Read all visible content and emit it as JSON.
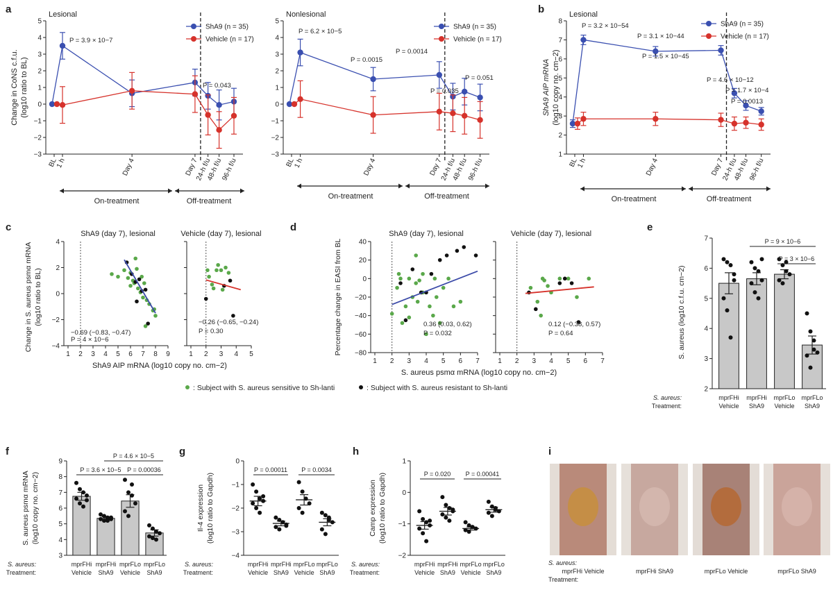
{
  "colors": {
    "sha9": "#3a4fb0",
    "vehicle": "#d6322b",
    "green": "#5aa84a",
    "black": "#111111",
    "bar": "#c8c8c8",
    "line_c": "#3b4aa8"
  },
  "figure": {
    "legend_sensitive": ": Subject with S. aureus sensitive to Sh-lanti",
    "legend_resistant": ": Subject with S. aureus resistant to Sh-lanti",
    "legend_c_sha9": "ShA9 (n = 35)",
    "legend_c_vehicle": "Vehicle (n = 17)",
    "on_treatment": "On-treatment",
    "off_treatment": "Off-treatment",
    "photo_labels": [
      "mprFHi Vehicle",
      "mprFHi ShA9",
      "mprFLo Vehicle",
      "mprFLo ShA9"
    ],
    "panel_i_row1": "S. aureus:",
    "panel_i_row2": "Treatment:"
  },
  "chart_data": [
    {
      "panel": "a-left",
      "type": "line",
      "title": "Lesional",
      "ylabel": "Change in CoNS c.f.u. (log10 ratio to BL)",
      "ylim": [
        -3,
        5
      ],
      "categories": [
        "BL",
        "1 h",
        "Day 4",
        "Day 7",
        "24-h f/u",
        "48-h f/u",
        "96-h f/u"
      ],
      "series": [
        {
          "name": "ShA9 (n = 35)",
          "values": [
            0,
            3.5,
            0.65,
            1.3,
            0.5,
            -0.05,
            0.15
          ],
          "err": [
            0,
            0.8,
            0.8,
            0.8,
            0.8,
            0.9,
            0.8
          ]
        },
        {
          "name": "Vehicle (n = 17)",
          "values": [
            0,
            -0.05,
            0.8,
            0.6,
            -0.65,
            -1.55,
            -0.7
          ],
          "err": [
            0,
            1.1,
            1.1,
            1.1,
            1.2,
            1.1,
            1.1
          ]
        }
      ],
      "annotations": [
        "P = 3.9 × 10−7",
        "P = 0.043"
      ]
    },
    {
      "panel": "a-right",
      "type": "line",
      "title": "Nonlesional",
      "ylim": [
        -3,
        5
      ],
      "categories": [
        "BL",
        "1 h",
        "Day 4",
        "Day 7",
        "24-h f/u",
        "48-h f/u",
        "96-h f/u"
      ],
      "series": [
        {
          "name": "ShA9 (n = 35)",
          "values": [
            0,
            3.1,
            1.5,
            1.75,
            0.45,
            0.75,
            0.4
          ],
          "err": [
            0,
            0.8,
            0.7,
            0.8,
            0.8,
            0.8,
            0.8
          ]
        },
        {
          "name": "Vehicle (n = 17)",
          "values": [
            0,
            0.3,
            -0.65,
            -0.45,
            -0.55,
            -0.7,
            -0.95
          ],
          "err": [
            0,
            1.1,
            1.1,
            1.1,
            1.1,
            1.1,
            1.1
          ]
        }
      ],
      "annotations": [
        "P = 6.2 × 10−5",
        "P = 0.0015",
        "P = 0.0014",
        "P = 0.035",
        "P = 0.051"
      ]
    },
    {
      "panel": "b",
      "type": "line",
      "title": "Lesional",
      "ylabel": "ShA9 AIP mRNA (log10 copy no. cm−2)",
      "ylim": [
        1,
        8
      ],
      "categories": [
        "BL",
        "1 h",
        "Day 4",
        "Day 7",
        "24-h f/u",
        "48-h f/u",
        "96-h f/u"
      ],
      "series": [
        {
          "name": "ShA9 (n = 35)",
          "values": [
            2.6,
            7.0,
            6.4,
            6.45,
            4.2,
            3.55,
            3.25
          ],
          "err": [
            0.2,
            0.25,
            0.25,
            0.25,
            0.25,
            0.25,
            0.2
          ]
        },
        {
          "name": "Vehicle (n = 17)",
          "values": [
            2.6,
            2.85,
            2.85,
            2.8,
            2.6,
            2.65,
            2.55
          ],
          "err": [
            0.3,
            0.35,
            0.35,
            0.35,
            0.35,
            0.3,
            0.3
          ]
        }
      ],
      "annotations": [
        "P = 3.2 × 10−54",
        "P = 3.1 × 10−44",
        "P = 1.5 × 10−45",
        "P = 4.6 × 10−12",
        "P = 1.7 × 10−4",
        "P = 0.0013"
      ]
    },
    {
      "panel": "c-left",
      "type": "scatter",
      "title": "ShA9 (day 7), lesional",
      "xlabel": "ShA9 AIP mRNA (log10 copy no. cm−2)",
      "ylabel": "Change in S. aureus psmα mRNA (log10 ratio to BL)",
      "xlim": [
        1,
        9
      ],
      "ylim": [
        -4,
        4
      ],
      "green": [
        [
          4.5,
          1.5
        ],
        [
          5.0,
          1.3
        ],
        [
          5.5,
          1.8
        ],
        [
          5.8,
          1.2
        ],
        [
          6.0,
          1.6
        ],
        [
          6.2,
          1.0
        ],
        [
          6.3,
          0.8
        ],
        [
          6.4,
          2.7
        ],
        [
          6.5,
          1.9
        ],
        [
          6.6,
          0.4
        ],
        [
          6.8,
          0.1
        ],
        [
          7.0,
          -0.3
        ],
        [
          7.1,
          0.8
        ],
        [
          7.3,
          -0.5
        ],
        [
          7.5,
          -0.8
        ],
        [
          7.8,
          -1.3
        ],
        [
          8.0,
          -1.7
        ],
        [
          7.9,
          -1.2
        ],
        [
          6.9,
          1.3
        ],
        [
          6.0,
          0.6
        ],
        [
          7.2,
          -2.5
        ]
      ],
      "black": [
        [
          5.7,
          2.4
        ],
        [
          6.1,
          1.5
        ],
        [
          6.4,
          0.9
        ],
        [
          6.7,
          1.1
        ],
        [
          6.9,
          0.2
        ],
        [
          7.2,
          0.3
        ],
        [
          7.4,
          -2.3
        ],
        [
          6.5,
          -0.6
        ]
      ],
      "fit": [
        [
          5.5,
          2.6
        ],
        [
          8.0,
          -1.5
        ]
      ],
      "stat_r": "−0.69 (−0.83, −0.47)",
      "stat_p": "P = 4 × 10−6"
    },
    {
      "panel": "c-right",
      "type": "scatter",
      "title": "Vehicle (day 7), lesional",
      "xlim": [
        1,
        5
      ],
      "ylim": [
        -4,
        4
      ],
      "green": [
        [
          2.2,
          1.3
        ],
        [
          2.4,
          0.7
        ],
        [
          2.5,
          0.4
        ],
        [
          2.7,
          1.8
        ],
        [
          2.8,
          2.2
        ],
        [
          3.0,
          1.8
        ],
        [
          3.1,
          0.3
        ],
        [
          3.3,
          2.0
        ],
        [
          3.5,
          1.6
        ],
        [
          2.1,
          1.8
        ]
      ],
      "black": [
        [
          2.0,
          -0.4
        ],
        [
          3.2,
          0.6
        ],
        [
          3.6,
          1.0
        ],
        [
          3.8,
          -1.7
        ]
      ],
      "fit": [
        [
          2.0,
          1.05
        ],
        [
          4.3,
          0.3
        ]
      ],
      "stat_r": "−0.26 (−0.65, −0.24)",
      "stat_p": "P = 0.30"
    },
    {
      "panel": "d-left",
      "type": "scatter",
      "title": "ShA9 (day 7), lesional",
      "xlabel": "S. aureus psmα mRNA (log10 copy no. cm−2)",
      "ylabel": "Percentage change in EASI from BL",
      "xlim": [
        1,
        7
      ],
      "ylim": [
        -80,
        40
      ],
      "green": [
        [
          2.0,
          -38
        ],
        [
          2.3,
          -10
        ],
        [
          2.5,
          0
        ],
        [
          2.6,
          -48
        ],
        [
          2.8,
          -30
        ],
        [
          3.0,
          -42
        ],
        [
          3.2,
          -20
        ],
        [
          3.4,
          -5
        ],
        [
          3.5,
          -25
        ],
        [
          3.6,
          -2
        ],
        [
          3.8,
          -15
        ],
        [
          4.0,
          -60
        ],
        [
          4.2,
          -30
        ],
        [
          4.4,
          -40
        ],
        [
          4.6,
          -20
        ],
        [
          4.8,
          -48
        ],
        [
          5.0,
          -10
        ],
        [
          5.3,
          0
        ],
        [
          5.6,
          -30
        ],
        [
          6.0,
          -25
        ],
        [
          3.0,
          0
        ],
        [
          4.5,
          0
        ],
        [
          3.8,
          5
        ],
        [
          3.4,
          25
        ],
        [
          2.4,
          5
        ]
      ],
      "black": [
        [
          2.5,
          -5
        ],
        [
          3.2,
          10
        ],
        [
          3.7,
          -15
        ],
        [
          4.3,
          5
        ],
        [
          4.8,
          20
        ],
        [
          5.2,
          25
        ],
        [
          5.8,
          30
        ],
        [
          6.2,
          34
        ],
        [
          6.9,
          25
        ],
        [
          4.0,
          -15
        ],
        [
          2.8,
          -45
        ]
      ],
      "fit": [
        [
          2.0,
          -28
        ],
        [
          7.0,
          8
        ]
      ],
      "stat_r": "0.36 (0.03, 0.62)",
      "stat_p": "P = 0.032"
    },
    {
      "panel": "d-right",
      "type": "scatter",
      "title": "Vehicle (day 7), lesional",
      "xlim": [
        1,
        7
      ],
      "ylim": [
        -80,
        40
      ],
      "green": [
        [
          2.8,
          -10
        ],
        [
          3.2,
          -25
        ],
        [
          3.4,
          -40
        ],
        [
          3.6,
          -2
        ],
        [
          3.8,
          -8
        ],
        [
          4.0,
          -15
        ],
        [
          4.5,
          0
        ],
        [
          5.0,
          0
        ],
        [
          5.5,
          -20
        ],
        [
          3.5,
          0
        ],
        [
          6.2,
          0
        ]
      ],
      "black": [
        [
          2.7,
          -15
        ],
        [
          3.1,
          -33
        ],
        [
          4.5,
          -5
        ],
        [
          5.2,
          -5
        ],
        [
          5.6,
          -47
        ],
        [
          4.8,
          0
        ]
      ],
      "fit": [
        [
          2.5,
          -16
        ],
        [
          6.5,
          -9
        ]
      ],
      "stat_r": "0.12 (−0.38, 0.57)",
      "stat_p": "P = 0.64"
    },
    {
      "panel": "e",
      "type": "bar",
      "ylabel": "S. aureus (log10 c.f.u. cm−2)",
      "ylim": [
        2,
        7
      ],
      "categories": [
        "mprFHi Vehicle",
        "mprFHi ShA9",
        "mprFLo Vehicle",
        "mprFLo ShA9"
      ],
      "values": [
        5.5,
        5.65,
        5.8,
        3.45
      ],
      "err": [
        0.35,
        0.2,
        0.15,
        0.3
      ],
      "points": [
        [
          6.3,
          6.2,
          6.1,
          5.8,
          5.0,
          4.6,
          3.7,
          5.6
        ],
        [
          6.2,
          6.0,
          5.9,
          5.6,
          5.5,
          5.2,
          5.0,
          6.3
        ],
        [
          6.3,
          6.1,
          5.9,
          5.8,
          5.6,
          5.5,
          6.2
        ],
        [
          4.5,
          3.9,
          3.6,
          3.2,
          3.1,
          2.7,
          3.3
        ]
      ],
      "annotations": [
        "P = 9 × 10−6",
        "P = 3 × 10−6"
      ],
      "row_strain": [
        "mprFHi",
        "mprFHi",
        "mprFLo",
        "mprFLo"
      ],
      "row_treat": [
        "Vehicle",
        "ShA9",
        "Vehicle",
        "ShA9"
      ]
    },
    {
      "panel": "f",
      "type": "bar",
      "ylabel": "S. aureus psmα mRNA (log10 copy no. cm−2)",
      "ylim": [
        3,
        9
      ],
      "categories": [
        "mprFHi Vehicle",
        "mprFHi ShA9",
        "mprFLo Vehicle",
        "mprFLo ShA9"
      ],
      "values": [
        6.75,
        5.35,
        6.45,
        4.42
      ],
      "err": [
        0.25,
        0.1,
        0.4,
        0.2
      ],
      "points": [
        [
          7.6,
          7.2,
          7.0,
          6.8,
          6.6,
          6.3,
          6.1,
          6.5
        ],
        [
          5.6,
          5.5,
          5.4,
          5.3,
          5.3,
          5.2,
          5.2,
          5.4
        ],
        [
          7.8,
          7.0,
          6.8,
          6.3,
          5.8,
          5.5,
          7.5
        ],
        [
          4.9,
          4.7,
          4.5,
          4.4,
          4.2,
          4.1,
          4.0
        ]
      ],
      "annotations": [
        "P = 3.6 × 10−5",
        "P = 4.6 × 10−5",
        "P = 0.00036"
      ],
      "row_strain": [
        "mprFHi",
        "mprFHi",
        "mprFLo",
        "mprFLo"
      ],
      "row_treat": [
        "Vehicle",
        "ShA9",
        "Vehicle",
        "ShA9"
      ]
    },
    {
      "panel": "g",
      "type": "scatter",
      "ylabel": "Il-4 expression (log10 ratio to Gapdh)",
      "ylim": [
        -4,
        0
      ],
      "categories": [
        "mprFHi Vehicle",
        "mprFHi ShA9",
        "mprFLo Vehicle",
        "mprFLo ShA9"
      ],
      "means": [
        -1.7,
        -2.65,
        -1.65,
        -2.6
      ],
      "err": [
        0.2,
        0.1,
        0.22,
        0.15
      ],
      "points": [
        [
          -1.0,
          -1.3,
          -1.6,
          -1.7,
          -1.8,
          -2.0,
          -2.2,
          -1.5
        ],
        [
          -2.4,
          -2.5,
          -2.6,
          -2.7,
          -2.8,
          -2.9,
          -2.6,
          -2.75
        ],
        [
          -0.9,
          -1.3,
          -1.6,
          -1.8,
          -2.0,
          -2.2
        ],
        [
          -2.2,
          -2.3,
          -2.5,
          -2.6,
          -2.9,
          -3.1,
          -2.4
        ]
      ],
      "annotations": [
        "P = 0.00011",
        "P = 0.0034"
      ],
      "row_strain": [
        "mprFHi",
        "mprFHi",
        "mprFLo",
        "mprFLo"
      ],
      "row_treat": [
        "Vehicle",
        "ShA9",
        "Vehicle",
        "ShA9"
      ]
    },
    {
      "panel": "h",
      "type": "scatter",
      "ylabel": "Camp expression (log10 ratio to Gapdh)",
      "ylim": [
        -2,
        1
      ],
      "categories": [
        "mprFHi Vehicle",
        "mprFHi ShA9",
        "mprFLo Vehicle",
        "mprFLo ShA9"
      ],
      "means": [
        -1.05,
        -0.6,
        -1.15,
        -0.55
      ],
      "err": [
        0.12,
        0.12,
        0.05,
        0.08
      ],
      "points": [
        [
          -0.6,
          -0.85,
          -0.95,
          -1.05,
          -1.15,
          -1.3,
          -1.55,
          -0.9
        ],
        [
          -0.15,
          -0.4,
          -0.5,
          -0.6,
          -0.7,
          -0.8,
          -0.9,
          -0.55
        ],
        [
          -0.95,
          -1.05,
          -1.1,
          -1.15,
          -1.2,
          -1.25,
          -1.1
        ],
        [
          -0.3,
          -0.45,
          -0.55,
          -0.6,
          -0.65,
          -0.75,
          -0.5
        ]
      ],
      "annotations": [
        "P = 0.020",
        "P = 0.00041"
      ],
      "row_strain": [
        "mprFHi",
        "mprFHi",
        "mprFLo",
        "mprFLo"
      ],
      "row_treat": [
        "Vehicle",
        "ShA9",
        "Vehicle",
        "ShA9"
      ]
    }
  ]
}
